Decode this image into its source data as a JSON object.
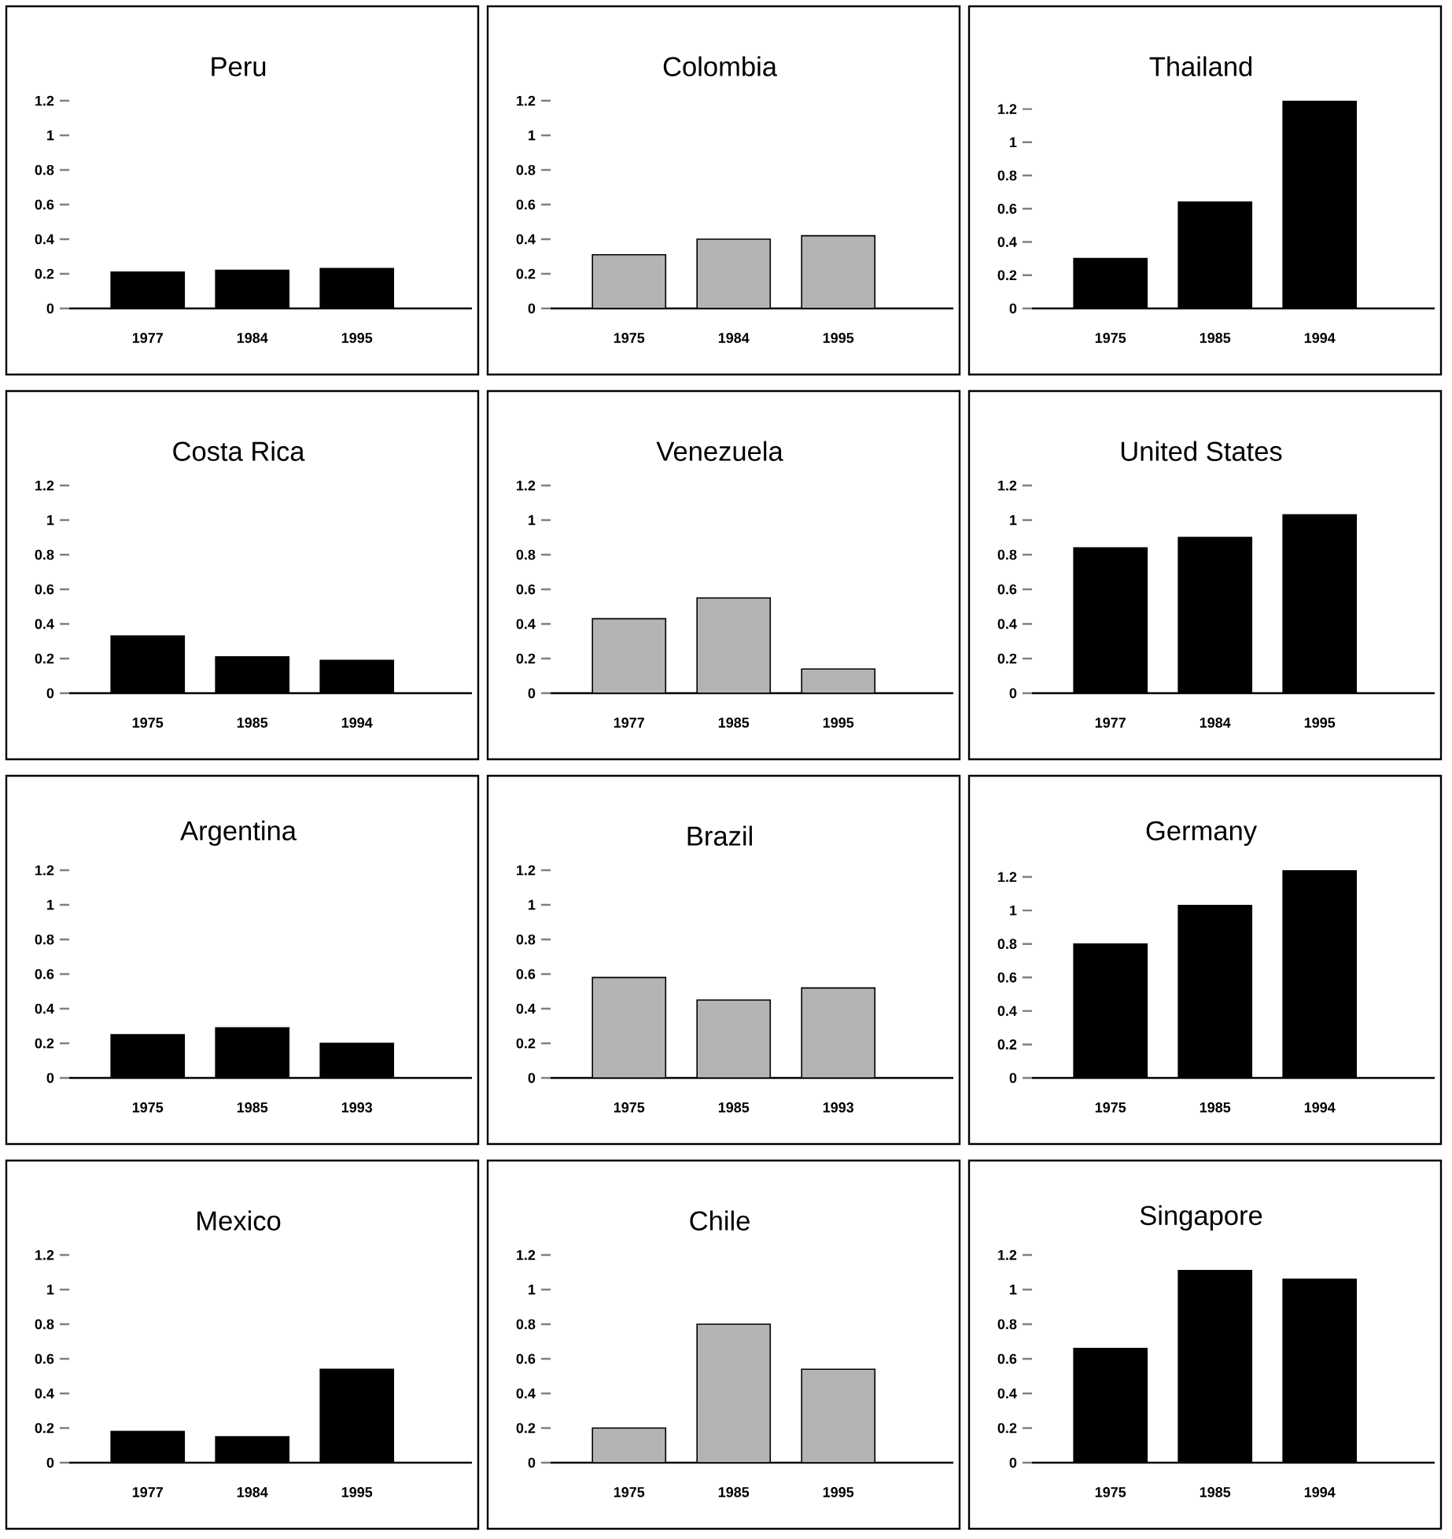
{
  "chart_data": [
    {
      "type": "bar",
      "title": "Peru",
      "categories": [
        "1977",
        "1984",
        "1995"
      ],
      "values": [
        0.21,
        0.22,
        0.23
      ],
      "color": "#000000",
      "ylim": [
        0,
        1.2
      ],
      "yticks": [
        0,
        0.2,
        0.4,
        0.6,
        0.8,
        1,
        1.2
      ]
    },
    {
      "type": "bar",
      "title": "Colombia",
      "categories": [
        "1975",
        "1984",
        "1995"
      ],
      "values": [
        0.31,
        0.4,
        0.42
      ],
      "color": "#b4b4b4",
      "ylim": [
        0,
        1.2
      ],
      "yticks": [
        0,
        0.2,
        0.4,
        0.6,
        0.8,
        1,
        1.2
      ]
    },
    {
      "type": "bar",
      "title": "Thailand",
      "categories": [
        "1975",
        "1985",
        "1994"
      ],
      "values": [
        0.3,
        0.64,
        1.25
      ],
      "color": "#000000",
      "ylim": [
        0,
        1.25
      ],
      "yticks": [
        0,
        0.2,
        0.4,
        0.6,
        0.8,
        1,
        1.2
      ]
    },
    {
      "type": "bar",
      "title": "Costa Rica",
      "categories": [
        "1975",
        "1985",
        "1994"
      ],
      "values": [
        0.33,
        0.21,
        0.19
      ],
      "color": "#000000",
      "ylim": [
        0,
        1.2
      ],
      "yticks": [
        0,
        0.2,
        0.4,
        0.6,
        0.8,
        1,
        1.2
      ]
    },
    {
      "type": "bar",
      "title": "Venezuela",
      "categories": [
        "1977",
        "1985",
        "1995"
      ],
      "values": [
        0.43,
        0.55,
        0.14
      ],
      "color": "#b4b4b4",
      "ylim": [
        0,
        1.2
      ],
      "yticks": [
        0,
        0.2,
        0.4,
        0.6,
        0.8,
        1,
        1.2
      ]
    },
    {
      "type": "bar",
      "title": "United States",
      "categories": [
        "1977",
        "1984",
        "1995"
      ],
      "values": [
        0.84,
        0.9,
        1.03
      ],
      "color": "#000000",
      "ylim": [
        0,
        1.2
      ],
      "yticks": [
        0,
        0.2,
        0.4,
        0.6,
        0.8,
        1,
        1.2
      ]
    },
    {
      "type": "bar",
      "title": "Argentina",
      "categories": [
        "1975",
        "1985",
        "1993"
      ],
      "values": [
        0.25,
        0.29,
        0.2
      ],
      "color": "#000000",
      "ylim": [
        0,
        1.2
      ],
      "yticks": [
        0,
        0.2,
        0.4,
        0.6,
        0.8,
        1,
        1.2
      ]
    },
    {
      "type": "bar",
      "title": "Brazil",
      "categories": [
        "1975",
        "1985",
        "1993"
      ],
      "values": [
        0.58,
        0.45,
        0.52
      ],
      "color": "#b4b4b4",
      "ylim": [
        0,
        1.2
      ],
      "yticks": [
        0,
        0.2,
        0.4,
        0.6,
        0.8,
        1,
        1.2
      ]
    },
    {
      "type": "bar",
      "title": "Germany",
      "categories": [
        "1975",
        "1985",
        "1994"
      ],
      "values": [
        0.8,
        1.03,
        1.24
      ],
      "color": "#000000",
      "ylim": [
        0,
        1.24
      ],
      "yticks": [
        0,
        0.2,
        0.4,
        0.6,
        0.8,
        1,
        1.2
      ]
    },
    {
      "type": "bar",
      "title": "Mexico",
      "categories": [
        "1977",
        "1984",
        "1995"
      ],
      "values": [
        0.18,
        0.15,
        0.54
      ],
      "color": "#000000",
      "ylim": [
        0,
        1.2
      ],
      "yticks": [
        0,
        0.2,
        0.4,
        0.6,
        0.8,
        1,
        1.2
      ]
    },
    {
      "type": "bar",
      "title": "Chile",
      "categories": [
        "1975",
        "1985",
        "1995"
      ],
      "values": [
        0.2,
        0.8,
        0.54
      ],
      "color": "#b4b4b4",
      "ylim": [
        0,
        1.2
      ],
      "yticks": [
        0,
        0.2,
        0.4,
        0.6,
        0.8,
        1,
        1.2
      ]
    },
    {
      "type": "bar",
      "title": "Singapore",
      "categories": [
        "1975",
        "1985",
        "1994"
      ],
      "values": [
        0.66,
        1.11,
        1.06
      ],
      "color": "#000000",
      "ylim": [
        0,
        1.2
      ],
      "yticks": [
        0,
        0.2,
        0.4,
        0.6,
        0.8,
        1,
        1.2
      ]
    }
  ]
}
